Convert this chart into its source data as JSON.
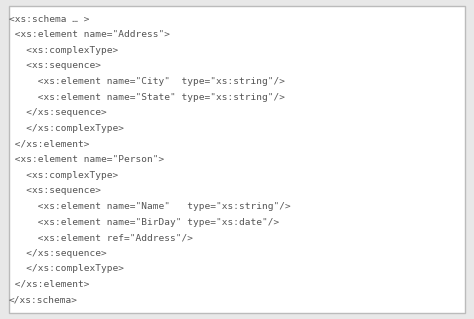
{
  "lines": [
    "<xs:schema … >",
    " <xs:element name=\"Address\">",
    "   <xs:complexType>",
    "   <xs:sequence>",
    "     <xs:element name=\"City\"  type=\"xs:string\"/>",
    "     <xs:element name=\"State\" type=\"xs:string\"/>",
    "   </xs:sequence>",
    "   </xs:complexType>",
    " </xs:element>",
    " <xs:element name=\"Person\">",
    "   <xs:complexType>",
    "   <xs:sequence>",
    "     <xs:element name=\"Name\"   type=\"xs:string\"/>",
    "     <xs:element name=\"BirDay\" type=\"xs:date\"/>",
    "     <xs:element ref=\"Address\"/>",
    "   </xs:sequence>",
    "   </xs:complexType>",
    " </xs:element>",
    "</xs:schema>"
  ],
  "bg_color": "#e8e8e8",
  "box_color": "#ffffff",
  "text_color": "#555555",
  "border_color": "#bbbbbb",
  "font_size": 6.8,
  "font_family": "monospace"
}
